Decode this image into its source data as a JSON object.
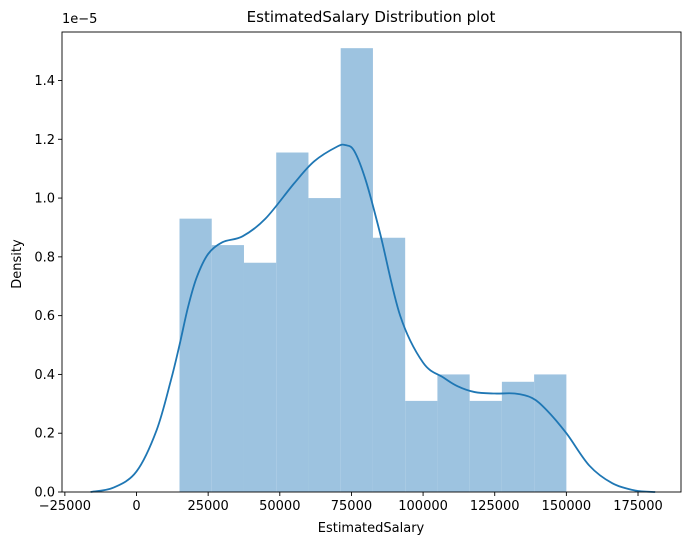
{
  "chart_data": {
    "type": "bar",
    "title": "EstimatedSalary Distribution plot",
    "xlabel": "EstimatedSalary",
    "ylabel": "Density",
    "y_offset_label": "1e−5",
    "xlim": [
      -26000,
      190000
    ],
    "ylim": [
      0,
      1.565
    ],
    "x_ticks": [
      -25000,
      0,
      25000,
      50000,
      75000,
      100000,
      125000,
      150000,
      175000
    ],
    "x_tick_labels": [
      "−25000",
      "0",
      "25000",
      "50000",
      "75000",
      "100000",
      "125000",
      "150000",
      "175000"
    ],
    "y_ticks": [
      0,
      0.2,
      0.4,
      0.6,
      0.8,
      1.0,
      1.2,
      1.4
    ],
    "y_tick_labels": [
      "0.0",
      "0.2",
      "0.4",
      "0.6",
      "0.8",
      "1.0",
      "1.2",
      "1.4"
    ],
    "grid": false,
    "series": [
      {
        "kind": "histogram",
        "color": "#9dc3e0",
        "bin_edges": [
          15000,
          26250,
          37500,
          48750,
          60000,
          71250,
          82500,
          93750,
          105000,
          116250,
          127500,
          138750,
          150000
        ],
        "values": [
          0.93,
          0.84,
          0.78,
          1.155,
          1.0,
          1.51,
          0.865,
          0.31,
          0.4,
          0.31,
          0.375,
          0.4
        ]
      },
      {
        "kind": "kde",
        "color": "#1f77b4",
        "x": [
          -16000,
          -8000,
          0,
          7000,
          12000,
          15000,
          18000,
          21000,
          25000,
          30000,
          37000,
          45000,
          55000,
          62000,
          70000,
          73000,
          76000,
          80000,
          85000,
          92000,
          100000,
          107000,
          112000,
          118000,
          125000,
          132000,
          138000,
          143000,
          150000,
          158000,
          166000,
          174000,
          181000
        ],
        "values": [
          0.0,
          0.015,
          0.07,
          0.21,
          0.38,
          0.5,
          0.63,
          0.73,
          0.81,
          0.85,
          0.87,
          0.93,
          1.05,
          1.125,
          1.175,
          1.18,
          1.16,
          1.06,
          0.88,
          0.6,
          0.44,
          0.39,
          0.36,
          0.34,
          0.335,
          0.335,
          0.32,
          0.28,
          0.2,
          0.09,
          0.03,
          0.005,
          0.0
        ]
      }
    ]
  }
}
